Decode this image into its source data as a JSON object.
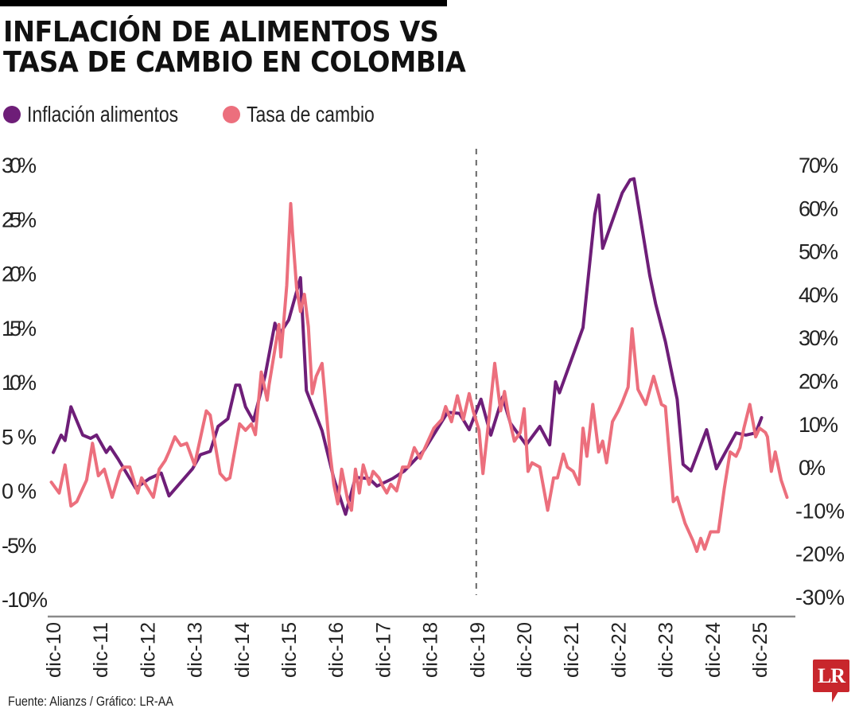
{
  "header": {
    "title_line1": "INFLACIÓN DE ALIMENTOS VS",
    "title_line2": "TASA DE CAMBIO EN COLOMBIA"
  },
  "legend": [
    {
      "label": "Inflación alimentos",
      "color": "#6e1e78"
    },
    {
      "label": "Tasa de cambio",
      "color": "#ec6f7d"
    }
  ],
  "footer": {
    "source": "Fuente: Alianzs / Gráfico: LR-AA",
    "logo_text": "LR",
    "logo_color": "#c8262c"
  },
  "chart_data": {
    "type": "line",
    "title": "INFLACIÓN DE ALIMENTOS VS TASA DE CAMBIO EN COLOMBIA",
    "xlabel": "",
    "x_unit": "months since dic-10",
    "x_ticks": [
      "dic-10",
      "dic-11",
      "dic-12",
      "dic-13",
      "dic-14",
      "dic-15",
      "dic-16",
      "dic-17",
      "dic-18",
      "dic-19",
      "dic-20",
      "dic-21",
      "dic-22",
      "dic-23",
      "dic-24",
      "dic-25"
    ],
    "y_left": {
      "label": "Inflación alimentos",
      "ylim": [
        -10,
        30
      ],
      "ticks": [
        "30%",
        "25%",
        "20%",
        "15%",
        "10%",
        "5%",
        "0%",
        "-5%",
        "-10%"
      ],
      "tick_values": [
        30,
        25,
        20,
        15,
        10,
        5,
        0,
        -5,
        -10
      ]
    },
    "y_right": {
      "label": "Tasa de cambio",
      "ylim": [
        -30,
        70
      ],
      "ticks": [
        "70%",
        "60%",
        "50%",
        "40%",
        "30%",
        "20%",
        "10%",
        "0%",
        "-10%",
        "-20%",
        "-30%"
      ],
      "tick_values": [
        70,
        60,
        50,
        40,
        30,
        20,
        10,
        0,
        -10,
        -20,
        -30
      ]
    },
    "annotations": [
      {
        "type": "vertical-dashed-line",
        "x_months": 108,
        "label": "dic-19"
      }
    ],
    "grid": false,
    "legend_position": "top-left",
    "series": [
      {
        "name": "Inflación alimentos",
        "axis": "left",
        "color": "#6e1e78",
        "points": [
          [
            0,
            3.5
          ],
          [
            2,
            5.1
          ],
          [
            3,
            4.6
          ],
          [
            4.5,
            7.7
          ],
          [
            6,
            6.4
          ],
          [
            7.5,
            5.1
          ],
          [
            9.5,
            4.8
          ],
          [
            11,
            5.1
          ],
          [
            13.5,
            3.5
          ],
          [
            14.5,
            4.0
          ],
          [
            16.5,
            2.9
          ],
          [
            21,
            0.2
          ],
          [
            24.5,
            1.1
          ],
          [
            27.5,
            1.6
          ],
          [
            29.5,
            -0.5
          ],
          [
            35.5,
            2.0
          ],
          [
            37.5,
            3.3
          ],
          [
            40,
            3.6
          ],
          [
            42,
            5.9
          ],
          [
            44.5,
            6.6
          ],
          [
            46.5,
            9.7
          ],
          [
            47.5,
            9.7
          ],
          [
            49,
            7.7
          ],
          [
            51,
            6.4
          ],
          [
            54,
            10.6
          ],
          [
            56.5,
            15.4
          ],
          [
            57.5,
            14.3
          ],
          [
            60,
            15.7
          ],
          [
            63,
            19.6
          ],
          [
            64.5,
            9.2
          ],
          [
            68.5,
            5.5
          ],
          [
            71.5,
            1.1
          ],
          [
            74.5,
            -2.2
          ],
          [
            77,
            1.2
          ],
          [
            80.5,
            1.1
          ],
          [
            82.5,
            0.4
          ],
          [
            86.5,
            1.1
          ],
          [
            89.5,
            1.8
          ],
          [
            94.5,
            3.7
          ],
          [
            100.5,
            7.2
          ],
          [
            103.5,
            7.1
          ],
          [
            106,
            5.6
          ],
          [
            109,
            8.4
          ],
          [
            111.5,
            5.1
          ],
          [
            114.5,
            8.6
          ],
          [
            116.5,
            6.2
          ],
          [
            120.5,
            4.2
          ],
          [
            124,
            5.9
          ],
          [
            126.5,
            4.2
          ],
          [
            128,
            10.0
          ],
          [
            129,
            9.0
          ],
          [
            135,
            15.0
          ],
          [
            138,
            25.4
          ],
          [
            139,
            27.2
          ],
          [
            140,
            22.3
          ],
          [
            145,
            27.4
          ],
          [
            147,
            28.6
          ],
          [
            148,
            28.7
          ],
          [
            152,
            19.8
          ],
          [
            153.5,
            17.2
          ],
          [
            156,
            13.7
          ],
          [
            159,
            8.4
          ],
          [
            160.5,
            2.4
          ],
          [
            162.5,
            1.8
          ],
          [
            166.5,
            5.6
          ],
          [
            169,
            2.0
          ],
          [
            174,
            5.3
          ],
          [
            176.5,
            5.1
          ],
          [
            179,
            5.3
          ],
          [
            180.5,
            6.7
          ]
        ]
      },
      {
        "name": "Tasa de cambio",
        "axis": "right",
        "color": "#ec6f7d",
        "points": [
          [
            -0.5,
            -3.5
          ],
          [
            1.5,
            -6
          ],
          [
            3,
            0.5
          ],
          [
            4.5,
            -9
          ],
          [
            6,
            -8
          ],
          [
            8.5,
            -3
          ],
          [
            10,
            5.5
          ],
          [
            11.5,
            -2
          ],
          [
            13,
            -0.5
          ],
          [
            15,
            -7
          ],
          [
            17,
            -1
          ],
          [
            18,
            0
          ],
          [
            19.5,
            0
          ],
          [
            21.5,
            -6
          ],
          [
            22.5,
            -2.5
          ],
          [
            23.5,
            -4
          ],
          [
            25.5,
            -7
          ],
          [
            27,
            -0.5
          ],
          [
            28.5,
            1.5
          ],
          [
            29.5,
            3.5
          ],
          [
            31,
            7
          ],
          [
            32.5,
            5
          ],
          [
            34,
            5.5
          ],
          [
            36,
            0.5
          ],
          [
            39,
            13
          ],
          [
            40,
            12
          ],
          [
            42.5,
            -1.5
          ],
          [
            44,
            -3
          ],
          [
            45,
            -2.5
          ],
          [
            47.5,
            10
          ],
          [
            49,
            8.5
          ],
          [
            50.5,
            10
          ],
          [
            51.5,
            7.5
          ],
          [
            53,
            22
          ],
          [
            54.5,
            15.5
          ],
          [
            55,
            19
          ],
          [
            57.5,
            33
          ],
          [
            58,
            25.5
          ],
          [
            59.5,
            42
          ],
          [
            60.5,
            61
          ],
          [
            61,
            54
          ],
          [
            62,
            41.5
          ],
          [
            63,
            36
          ],
          [
            64,
            40
          ],
          [
            65,
            32.5
          ],
          [
            66,
            17
          ],
          [
            67,
            21
          ],
          [
            68.5,
            24
          ],
          [
            70.5,
            3.5
          ],
          [
            71.5,
            -4
          ],
          [
            72.5,
            -8.5
          ],
          [
            73.5,
            -0.5
          ],
          [
            75,
            -7.5
          ],
          [
            76,
            -10
          ],
          [
            77,
            -0.5
          ],
          [
            78,
            -6
          ],
          [
            79,
            0.5
          ],
          [
            80.5,
            -4
          ],
          [
            81.5,
            -1
          ],
          [
            83,
            -2.5
          ],
          [
            84,
            -4.5
          ],
          [
            85,
            -6
          ],
          [
            86,
            -4
          ],
          [
            87.5,
            -5.5
          ],
          [
            89,
            0
          ],
          [
            90.5,
            0
          ],
          [
            92,
            4.5
          ],
          [
            93.5,
            2
          ],
          [
            95.5,
            6
          ],
          [
            97,
            9
          ],
          [
            99,
            11
          ],
          [
            100,
            14
          ],
          [
            101.5,
            10.5
          ],
          [
            103,
            16.5
          ],
          [
            104.5,
            11
          ],
          [
            106,
            17
          ],
          [
            107,
            13
          ],
          [
            108.5,
            8.5
          ],
          [
            109.5,
            -1.5
          ],
          [
            111,
            11
          ],
          [
            112.5,
            24
          ],
          [
            114,
            13
          ],
          [
            115,
            17.5
          ],
          [
            116,
            12
          ],
          [
            117.5,
            6
          ],
          [
            119,
            8
          ],
          [
            120,
            13.5
          ],
          [
            121,
            -1
          ],
          [
            122,
            1
          ],
          [
            124,
            0
          ],
          [
            126,
            -10
          ],
          [
            127.5,
            -2.5
          ],
          [
            128.5,
            -2.5
          ],
          [
            130,
            3
          ],
          [
            131,
            0
          ],
          [
            132.5,
            -1
          ],
          [
            134,
            -4
          ],
          [
            135,
            9
          ],
          [
            136,
            2.5
          ],
          [
            137.5,
            14.5
          ],
          [
            139,
            3.5
          ],
          [
            140,
            6
          ],
          [
            141,
            1
          ],
          [
            142.5,
            10.5
          ],
          [
            144,
            13
          ],
          [
            145,
            15
          ],
          [
            146.5,
            18.5
          ],
          [
            147.5,
            32
          ],
          [
            149,
            18
          ],
          [
            151,
            14.5
          ],
          [
            153,
            21
          ],
          [
            155,
            14.5
          ],
          [
            156,
            14
          ],
          [
            158,
            -8
          ],
          [
            159,
            -7
          ],
          [
            161,
            -13
          ],
          [
            163,
            -17
          ],
          [
            164,
            -19.5
          ],
          [
            165,
            -16.5
          ],
          [
            166,
            -19
          ],
          [
            167.5,
            -15
          ],
          [
            169.5,
            -15
          ],
          [
            171,
            -5
          ],
          [
            172.5,
            3.5
          ],
          [
            174,
            2.5
          ],
          [
            175,
            4.5
          ],
          [
            176,
            9
          ],
          [
            177.5,
            14.5
          ],
          [
            179,
            7
          ],
          [
            180,
            9
          ],
          [
            181.5,
            8
          ],
          [
            182,
            7
          ],
          [
            183,
            -1
          ],
          [
            184,
            3.5
          ],
          [
            185.5,
            -3
          ],
          [
            187,
            -7
          ]
        ]
      }
    ]
  }
}
